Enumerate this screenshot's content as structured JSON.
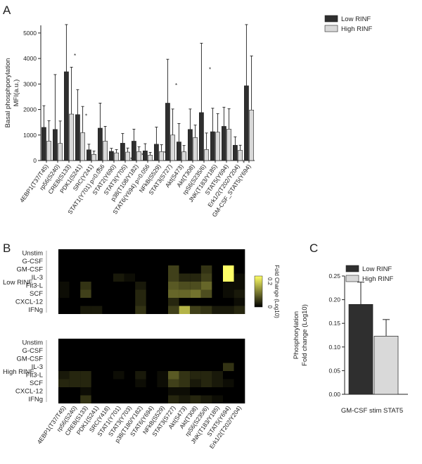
{
  "panels": {
    "a": {
      "letter": "A"
    },
    "b": {
      "letter": "B"
    },
    "c": {
      "letter": "C"
    }
  },
  "colors": {
    "low": "#2f2f2f",
    "high": "#d9d9d9",
    "heat_low": "#000000",
    "heat_high": "#ffff66"
  },
  "chart_data": [
    {
      "id": "A",
      "type": "bar",
      "ylabel": [
        "Basal phosphporylation",
        "MFI(a.u.)"
      ],
      "ylim": [
        0,
        5300
      ],
      "yticks": [
        0,
        1000,
        2000,
        3000,
        4000,
        5000
      ],
      "legend": {
        "placement": "top-right",
        "entries": [
          "Low RINF",
          "High RINF"
        ]
      },
      "categories": [
        "4EBP1(T37/T45)",
        "rp56(S240)",
        "CREB(S133)",
        "PDK1(S241)",
        "SRC(Y241)",
        "STAT1(Y701) p=0.056",
        "STAT2(Y690)",
        "STAT3(Y705)",
        "p38(T108/Y182)",
        "STAT6(Y694) p=0.056",
        "NFkB(S529)",
        "STAT3(S727)",
        "Akt(S473)",
        "Akt(T308)",
        "rpS6(S235/6)",
        "JNK(T183/Y185)",
        "STAT5(Y694)",
        "Erk1/2(T202/Y204)",
        "GM-CSF_STAT5(Y694)"
      ],
      "markers": [
        "",
        "",
        "*",
        "*",
        "*",
        "",
        "",
        "*",
        "*",
        "",
        "*",
        "*",
        "",
        "",
        "*",
        "",
        "",
        "*",
        ""
      ],
      "series": [
        {
          "name": "Low RINF",
          "values": [
            1300,
            1220,
            3480,
            1800,
            420,
            1270,
            360,
            680,
            760,
            380,
            640,
            2250,
            730,
            1220,
            1880,
            1130,
            1340,
            600,
            2930
          ],
          "err": [
            850,
            2150,
            1850,
            980,
            220,
            980,
            120,
            380,
            470,
            280,
            670,
            1720,
            720,
            800,
            2720,
            920,
            750,
            330,
            2400
          ]
        },
        {
          "name": "High RINF",
          "values": [
            760,
            670,
            1820,
            1090,
            240,
            760,
            300,
            330,
            350,
            210,
            350,
            1000,
            340,
            900,
            430,
            1110,
            1230,
            400,
            1980
          ],
          "err": [
            800,
            880,
            1840,
            1030,
            130,
            580,
            130,
            160,
            190,
            110,
            270,
            1020,
            250,
            490,
            650,
            730,
            800,
            200,
            2120
          ]
        }
      ]
    },
    {
      "id": "B",
      "type": "heatmap",
      "colorbar": {
        "min_label": "0",
        "max_label": "0.2",
        "label": "Fold Change (Log10)"
      },
      "rows": [
        "Unstim",
        "G-CSF",
        "GM-CSF",
        "IL-3",
        "Flt3-L",
        "SCF",
        "CXCL-12",
        "IFNg"
      ],
      "columns": [
        "4EBP1(T37/T45)",
        "rp56(S240)",
        "CREB(S133)",
        "PDK1(S241)",
        "SRC(Y418)",
        "STAT1(Y701)",
        "STAT3(Y703)",
        "p38(T180/Y182)",
        "STAT6(Y694)",
        "NFkB(S529)",
        "STAT3(S727)",
        "Akt(S473)",
        "Akt(T308)",
        "rpS6(S235/6)",
        "JNK(T183/Y185)",
        "STAT5(Y694)",
        "Erk1/2(T202/Y204)"
      ],
      "groups": [
        {
          "name": "Low RINF",
          "values": [
            [
              0,
              0,
              0,
              0,
              0,
              0,
              0,
              0,
              0,
              0,
              0,
              0,
              0,
              0,
              0,
              0,
              0
            ],
            [
              0,
              0,
              0,
              0,
              0,
              0,
              0,
              0,
              0,
              0,
              0,
              0,
              0,
              0,
              0,
              0,
              0
            ],
            [
              0,
              0,
              0,
              0,
              0,
              0,
              0,
              0,
              0,
              0,
              0.05,
              0,
              0,
              0.04,
              0,
              0.2,
              0
            ],
            [
              0,
              0,
              0,
              0,
              0,
              0.02,
              0.01,
              0,
              0,
              0,
              0.05,
              0.03,
              0.03,
              0.05,
              0,
              0.2,
              0.01
            ],
            [
              0.01,
              0,
              0.04,
              0,
              0,
              0,
              0,
              0.02,
              0,
              0,
              0.07,
              0.06,
              0.06,
              0.08,
              0,
              0.01,
              0.01
            ],
            [
              0.01,
              0,
              0.05,
              0,
              0,
              0,
              0,
              0.03,
              0,
              0,
              0.08,
              0.08,
              0.09,
              0.06,
              0,
              0.01,
              0.02
            ],
            [
              0,
              0,
              0,
              0,
              0,
              0,
              0,
              0.03,
              0,
              0,
              0.03,
              0,
              0,
              0,
              0,
              0,
              0.01
            ],
            [
              0,
              0,
              0.02,
              0.02,
              0,
              0,
              0,
              0.04,
              0,
              0,
              0.05,
              0.14,
              0.05,
              0.04,
              0.02,
              0.02,
              0.03
            ]
          ]
        },
        {
          "name": "High RINF",
          "values": [
            [
              0,
              0,
              0,
              0,
              0,
              0,
              0,
              0,
              0,
              0,
              0,
              0,
              0,
              0,
              0,
              0,
              0
            ],
            [
              0,
              0,
              0,
              0,
              0,
              0,
              0,
              0,
              0,
              0,
              0,
              0,
              0,
              0,
              0,
              0,
              0
            ],
            [
              0,
              0,
              0,
              0,
              0,
              0,
              0,
              0,
              0,
              0,
              0,
              0,
              0,
              0,
              0,
              0,
              0
            ],
            [
              0,
              0,
              0,
              0,
              0,
              0,
              0,
              0,
              0,
              0,
              0,
              0,
              0,
              0,
              0,
              0.04,
              0
            ],
            [
              0.02,
              0.03,
              0.03,
              0,
              0,
              0.01,
              0,
              0.02,
              0,
              0.01,
              0.07,
              0.04,
              0.03,
              0.03,
              0.02,
              0,
              0
            ],
            [
              0.03,
              0.03,
              0.03,
              0,
              0,
              0,
              0,
              0.01,
              0,
              0.01,
              0.05,
              0.04,
              0.02,
              0.03,
              0.02,
              0.01,
              0
            ],
            [
              0,
              0,
              0.01,
              0,
              0,
              0,
              0,
              0,
              0,
              0,
              0.01,
              0.01,
              0,
              0,
              0,
              0,
              0
            ],
            [
              0,
              0,
              0.04,
              0,
              0,
              0,
              0,
              0,
              0,
              0,
              0.03,
              0.02,
              0.03,
              0.02,
              0.01,
              0,
              0
            ]
          ]
        }
      ]
    },
    {
      "id": "C",
      "type": "bar",
      "categories": [
        "Low RINF",
        "High RINF"
      ],
      "values": [
        0.19,
        0.123
      ],
      "err": [
        0.047,
        0.035
      ],
      "ylabel": [
        "Phosphorylation",
        "Fold change (Log10)"
      ],
      "xlabel": "GM-CSF stim STAT5",
      "ylim": [
        0,
        0.25
      ],
      "yticks": [
        "0.00",
        "0.05",
        "0.10",
        "0.15",
        "0.20",
        "0.25"
      ],
      "legend": {
        "placement": "top",
        "entries": [
          "Low RINF",
          "High RINF"
        ]
      }
    }
  ]
}
